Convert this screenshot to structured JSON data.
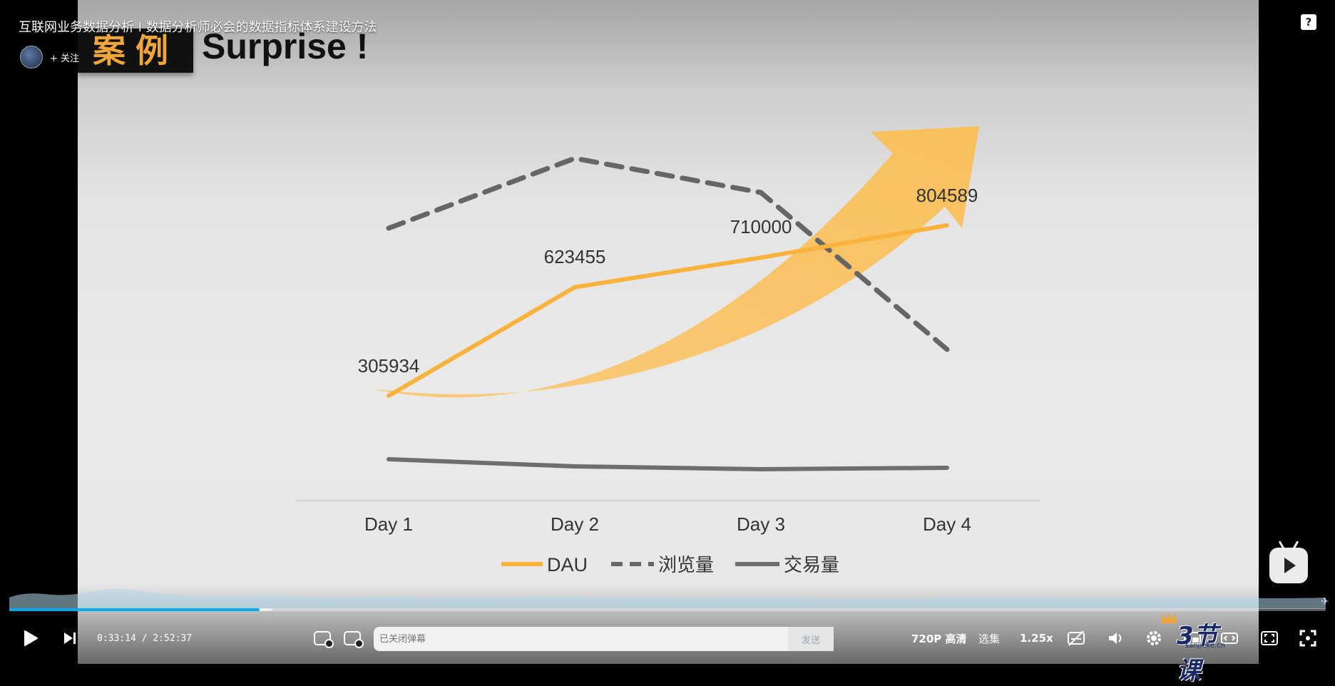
{
  "header": {
    "video_title": "互联网业务数据分析 l 数据分析师必会的数据指标体系建设方法",
    "follow_label": "+ 关注",
    "help_glyph": "?"
  },
  "slide": {
    "case_tag": "案例",
    "case_title": "Surprise !"
  },
  "chart_data": {
    "type": "line",
    "categories": [
      "Day 1",
      "Day 2",
      "Day 3",
      "Day 4"
    ],
    "series": [
      {
        "name": "DAU",
        "style": "solid",
        "color": "#f9b23c",
        "values": [
          305934,
          623455,
          710000,
          804589
        ]
      },
      {
        "name": "浏览量",
        "style": "dashed",
        "color": "#666666",
        "values": [
          null,
          null,
          null,
          null
        ]
      },
      {
        "name": "交易量",
        "style": "solid",
        "color": "#6e6e6e",
        "values": [
          null,
          null,
          null,
          null
        ]
      }
    ],
    "data_labels": [
      "305934",
      "623455",
      "710000",
      "804589"
    ],
    "legend_position": "bottom-center",
    "annotation": "orange upward trend arrow"
  },
  "controls": {
    "current_time": "0:33:14",
    "time_separator": " / ",
    "total_time": "2:52:37",
    "progress": 0.19,
    "buffered": 0.2,
    "danmaku_placeholder": "已关闭弹幕",
    "send_label": "发送",
    "quality_label": "720P 高清",
    "episodes_label": "选集",
    "speed_label": "1.25x"
  },
  "watermark": {
    "text": "3节课",
    "url": "sanjieke.cn"
  },
  "icons": {
    "play": "play-icon",
    "next": "next-icon",
    "danmaku_toggle": "danmaku-icon",
    "danmaku_settings": "danmaku-settings-icon",
    "subtitle": "subtitle-off-icon",
    "volume": "volume-icon",
    "settings": "gear-icon",
    "pip": "picture-in-picture-icon",
    "wide": "widescreen-icon",
    "web_fullscreen": "web-fullscreen-icon",
    "fullscreen": "fullscreen-icon"
  }
}
